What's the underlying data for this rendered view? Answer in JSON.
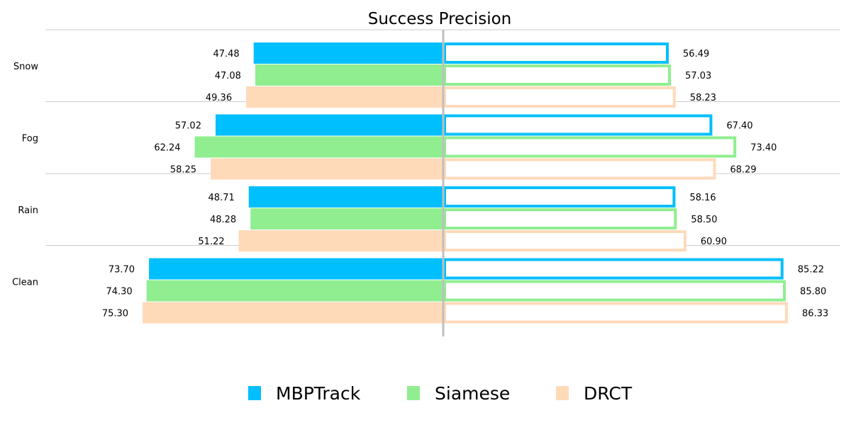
{
  "chart_data": {
    "type": "bar",
    "orientation": "horizontal",
    "layout": "diverging",
    "title": "Success Precision",
    "categories": [
      "Snow",
      "Fog",
      "Rain",
      "Clean"
    ],
    "series": [
      {
        "name": "MBPTrack",
        "color": "#00bfff",
        "left": [
          47.48,
          57.02,
          48.71,
          73.7
        ],
        "right": [
          56.49,
          67.4,
          58.16,
          85.22
        ]
      },
      {
        "name": "Siamese",
        "color": "#90ee90",
        "left": [
          47.08,
          62.24,
          48.28,
          74.3
        ],
        "right": [
          57.03,
          73.4,
          58.5,
          85.8
        ]
      },
      {
        "name": "DRCT",
        "color": "#ffdab9",
        "left": [
          49.36,
          58.25,
          51.22,
          75.3
        ],
        "right": [
          58.23,
          68.29,
          60.9,
          86.33
        ]
      }
    ],
    "left_style": "filled",
    "right_style": "outlined",
    "legend_position": "bottom",
    "grid": "horizontal separators between categories"
  }
}
